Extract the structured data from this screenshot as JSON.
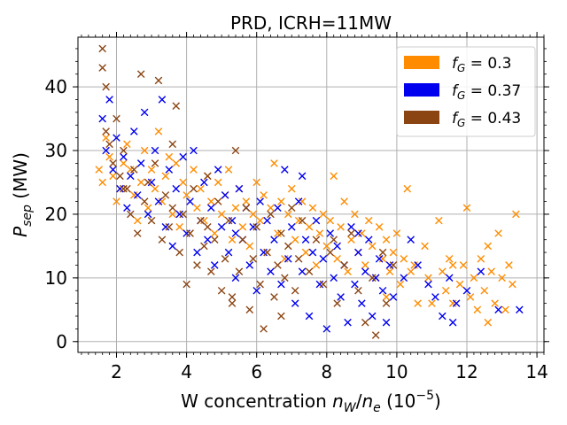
{
  "chart_data": {
    "type": "scatter",
    "title": "PRD, ICRH=11MW",
    "xlabel": {
      "prefix": "W concentration ",
      "var": "n",
      "var_sub1": "W",
      "slash": "/",
      "var2": "n",
      "var_sub2": "e",
      "unit_prefix": " (10",
      "unit_sup": "−5",
      "unit_suffix": ")"
    },
    "ylabel": {
      "var": "P",
      "sub": "sep",
      "unit": " (MW)"
    },
    "xlim": [
      0.9,
      14.2
    ],
    "ylim": [
      -1.7,
      47.8
    ],
    "xticks": [
      2,
      4,
      6,
      8,
      10,
      12,
      14
    ],
    "xtick_labels": [
      "2",
      "4",
      "6",
      "8",
      "10",
      "12",
      "14"
    ],
    "yticks": [
      0,
      10,
      20,
      30,
      40
    ],
    "ytick_labels": [
      "0",
      "10",
      "20",
      "30",
      "40"
    ],
    "grid": true,
    "marker": "x",
    "legend_position": "top-right",
    "series": [
      {
        "name": "f_G = 0.3",
        "legend_var": "f",
        "legend_sub": "G",
        "legend_value": " = 0.3",
        "color": "#ff8c00",
        "points": [
          [
            1.5,
            27
          ],
          [
            1.6,
            25
          ],
          [
            1.7,
            32
          ],
          [
            1.8,
            29
          ],
          [
            1.9,
            26
          ],
          [
            2.0,
            22
          ],
          [
            2.1,
            24
          ],
          [
            2.2,
            28
          ],
          [
            2.3,
            31
          ],
          [
            2.4,
            27
          ],
          [
            2.5,
            23
          ],
          [
            2.6,
            19
          ],
          [
            2.7,
            25
          ],
          [
            2.8,
            30
          ],
          [
            2.9,
            21
          ],
          [
            3.0,
            27
          ],
          [
            3.1,
            24
          ],
          [
            3.2,
            33
          ],
          [
            3.3,
            22
          ],
          [
            3.4,
            26
          ],
          [
            3.5,
            29
          ],
          [
            3.6,
            20
          ],
          [
            3.7,
            28
          ],
          [
            3.8,
            18
          ],
          [
            3.9,
            25
          ],
          [
            4.0,
            23
          ],
          [
            4.1,
            17
          ],
          [
            4.2,
            27
          ],
          [
            4.3,
            21
          ],
          [
            4.4,
            24
          ],
          [
            4.5,
            19
          ],
          [
            4.6,
            26
          ],
          [
            4.7,
            22
          ],
          [
            4.8,
            17
          ],
          [
            4.9,
            25
          ],
          [
            5.0,
            20
          ],
          [
            5.1,
            23
          ],
          [
            5.2,
            27
          ],
          [
            5.3,
            16
          ],
          [
            5.4,
            21
          ],
          [
            5.5,
            24
          ],
          [
            5.6,
            18
          ],
          [
            5.7,
            22
          ],
          [
            5.8,
            15
          ],
          [
            5.9,
            20
          ],
          [
            6.0,
            25
          ],
          [
            6.1,
            19
          ],
          [
            6.2,
            23
          ],
          [
            6.3,
            14
          ],
          [
            6.4,
            21
          ],
          [
            6.5,
            28
          ],
          [
            6.6,
            17
          ],
          [
            6.7,
            22
          ],
          [
            6.8,
            13
          ],
          [
            6.9,
            20
          ],
          [
            7.0,
            24
          ],
          [
            7.1,
            16
          ],
          [
            7.2,
            19
          ],
          [
            7.3,
            22
          ],
          [
            7.4,
            14
          ],
          [
            7.5,
            18
          ],
          [
            7.6,
            21
          ],
          [
            7.7,
            12
          ],
          [
            7.8,
            17
          ],
          [
            7.9,
            20
          ],
          [
            8.0,
            15
          ],
          [
            8.1,
            19
          ],
          [
            8.2,
            26
          ],
          [
            8.3,
            13
          ],
          [
            8.4,
            18
          ],
          [
            8.5,
            22
          ],
          [
            8.6,
            11
          ],
          [
            8.7,
            16
          ],
          [
            8.8,
            20
          ],
          [
            8.9,
            14
          ],
          [
            9.0,
            17
          ],
          [
            9.1,
            12
          ],
          [
            9.2,
            19
          ],
          [
            9.3,
            15
          ],
          [
            9.4,
            10
          ],
          [
            9.5,
            18
          ],
          [
            9.6,
            13
          ],
          [
            9.7,
            16
          ],
          [
            9.8,
            11
          ],
          [
            9.9,
            14
          ],
          [
            10.0,
            17
          ],
          [
            10.1,
            9
          ],
          [
            10.2,
            13
          ],
          [
            10.3,
            24
          ],
          [
            10.5,
            12
          ],
          [
            10.6,
            6
          ],
          [
            10.8,
            15
          ],
          [
            10.9,
            10
          ],
          [
            11.0,
            6
          ],
          [
            11.2,
            19
          ],
          [
            11.3,
            11
          ],
          [
            11.4,
            8
          ],
          [
            11.5,
            13
          ],
          [
            11.6,
            6
          ],
          [
            11.8,
            9
          ],
          [
            11.9,
            12
          ],
          [
            12.0,
            21
          ],
          [
            12.1,
            7
          ],
          [
            12.2,
            10
          ],
          [
            12.3,
            5
          ],
          [
            12.4,
            13
          ],
          [
            12.5,
            8
          ],
          [
            12.6,
            15
          ],
          [
            12.7,
            11
          ],
          [
            12.8,
            6
          ],
          [
            12.9,
            17
          ],
          [
            13.0,
            10
          ],
          [
            13.1,
            5
          ],
          [
            13.2,
            12
          ],
          [
            13.3,
            9
          ],
          [
            13.4,
            20
          ],
          [
            12.6,
            3
          ],
          [
            11.6,
            12
          ],
          [
            10.4,
            11
          ],
          [
            9.7,
            7
          ]
        ]
      },
      {
        "name": "f_G = 0.37",
        "legend_var": "f",
        "legend_sub": "G",
        "legend_value": " = 0.37",
        "color": "#0000ee",
        "points": [
          [
            1.6,
            35
          ],
          [
            1.7,
            30
          ],
          [
            1.8,
            38
          ],
          [
            1.9,
            27
          ],
          [
            2.0,
            32
          ],
          [
            2.1,
            24
          ],
          [
            2.2,
            29
          ],
          [
            2.3,
            21
          ],
          [
            2.4,
            26
          ],
          [
            2.5,
            33
          ],
          [
            2.6,
            23
          ],
          [
            2.7,
            28
          ],
          [
            2.8,
            36
          ],
          [
            2.9,
            20
          ],
          [
            3.0,
            25
          ],
          [
            3.1,
            30
          ],
          [
            3.2,
            22
          ],
          [
            3.3,
            38
          ],
          [
            3.4,
            18
          ],
          [
            3.5,
            27
          ],
          [
            3.6,
            15
          ],
          [
            3.7,
            24
          ],
          [
            3.8,
            20
          ],
          [
            3.9,
            29
          ],
          [
            4.0,
            17
          ],
          [
            4.1,
            22
          ],
          [
            4.2,
            30
          ],
          [
            4.3,
            14
          ],
          [
            4.4,
            19
          ],
          [
            4.5,
            25
          ],
          [
            4.6,
            16
          ],
          [
            4.7,
            21
          ],
          [
            4.8,
            12
          ],
          [
            4.9,
            27
          ],
          [
            5.0,
            18
          ],
          [
            5.1,
            23
          ],
          [
            5.2,
            14
          ],
          [
            5.3,
            19
          ],
          [
            5.4,
            10
          ],
          [
            5.5,
            24
          ],
          [
            5.6,
            16
          ],
          [
            5.7,
            21
          ],
          [
            5.8,
            12
          ],
          [
            5.9,
            18
          ],
          [
            6.0,
            8
          ],
          [
            6.1,
            22
          ],
          [
            6.2,
            14
          ],
          [
            6.3,
            19
          ],
          [
            6.4,
            11
          ],
          [
            6.5,
            16
          ],
          [
            6.6,
            21
          ],
          [
            6.7,
            9
          ],
          [
            6.8,
            27
          ],
          [
            6.9,
            13
          ],
          [
            7.0,
            18
          ],
          [
            7.1,
            6
          ],
          [
            7.2,
            22
          ],
          [
            7.3,
            11
          ],
          [
            7.4,
            16
          ],
          [
            7.5,
            4
          ],
          [
            7.6,
            14
          ],
          [
            7.7,
            19
          ],
          [
            7.8,
            9
          ],
          [
            7.9,
            13
          ],
          [
            8.0,
            2
          ],
          [
            8.1,
            17
          ],
          [
            8.2,
            10
          ],
          [
            8.3,
            15
          ],
          [
            8.4,
            7
          ],
          [
            8.5,
            12
          ],
          [
            8.6,
            3
          ],
          [
            8.7,
            18
          ],
          [
            8.8,
            9
          ],
          [
            8.9,
            14
          ],
          [
            9.0,
            6
          ],
          [
            9.1,
            11
          ],
          [
            9.2,
            16
          ],
          [
            9.3,
            4
          ],
          [
            9.4,
            10
          ],
          [
            9.5,
            13
          ],
          [
            9.6,
            8
          ],
          [
            9.7,
            3
          ],
          [
            9.8,
            12
          ],
          [
            9.9,
            7
          ],
          [
            10.2,
            10
          ],
          [
            10.4,
            16
          ],
          [
            10.6,
            12
          ],
          [
            10.9,
            9
          ],
          [
            11.1,
            7
          ],
          [
            11.3,
            4
          ],
          [
            11.5,
            10
          ],
          [
            11.7,
            6
          ],
          [
            12.0,
            8
          ],
          [
            12.4,
            11
          ],
          [
            12.9,
            5
          ],
          [
            13.5,
            5
          ],
          [
            11.6,
            3
          ],
          [
            8.9,
            17
          ],
          [
            7.3,
            26
          ],
          [
            5.4,
            17
          ]
        ]
      },
      {
        "name": "f_G = 0.43",
        "legend_var": "f",
        "legend_sub": "G",
        "legend_value": " = 0.43",
        "color": "#8b4513",
        "points": [
          [
            1.6,
            46
          ],
          [
            1.6,
            43
          ],
          [
            1.7,
            40
          ],
          [
            1.7,
            33
          ],
          [
            1.8,
            31
          ],
          [
            1.9,
            28
          ],
          [
            2.0,
            35
          ],
          [
            2.1,
            26
          ],
          [
            2.2,
            30
          ],
          [
            2.3,
            24
          ],
          [
            2.4,
            20
          ],
          [
            2.5,
            27
          ],
          [
            2.6,
            17
          ],
          [
            2.7,
            42
          ],
          [
            2.8,
            22
          ],
          [
            2.9,
            25
          ],
          [
            3.0,
            19
          ],
          [
            3.1,
            28
          ],
          [
            3.2,
            41
          ],
          [
            3.3,
            16
          ],
          [
            3.4,
            23
          ],
          [
            3.5,
            18
          ],
          [
            3.6,
            21
          ],
          [
            3.7,
            37
          ],
          [
            3.8,
            14
          ],
          [
            3.9,
            20
          ],
          [
            4.0,
            9
          ],
          [
            4.1,
            17
          ],
          [
            4.2,
            24
          ],
          [
            4.3,
            12
          ],
          [
            4.4,
            19
          ],
          [
            4.5,
            15
          ],
          [
            4.6,
            26
          ],
          [
            4.7,
            11
          ],
          [
            4.8,
            16
          ],
          [
            4.9,
            22
          ],
          [
            5.0,
            8
          ],
          [
            5.1,
            13
          ],
          [
            5.2,
            19
          ],
          [
            5.3,
            6
          ],
          [
            5.4,
            30
          ],
          [
            5.5,
            11
          ],
          [
            5.6,
            16
          ],
          [
            5.7,
            21
          ],
          [
            5.8,
            5
          ],
          [
            5.9,
            13
          ],
          [
            6.0,
            18
          ],
          [
            6.1,
            9
          ],
          [
            6.2,
            2
          ],
          [
            6.3,
            14
          ],
          [
            6.4,
            20
          ],
          [
            6.5,
            7
          ],
          [
            6.6,
            12
          ],
          [
            6.7,
            17
          ],
          [
            6.8,
            10
          ],
          [
            6.9,
            15
          ],
          [
            7.0,
            21
          ],
          [
            7.1,
            8
          ],
          [
            7.2,
            13
          ],
          [
            7.3,
            19
          ],
          [
            7.5,
            11
          ],
          [
            7.7,
            16
          ],
          [
            7.9,
            9
          ],
          [
            8.1,
            14
          ],
          [
            8.3,
            6
          ],
          [
            8.5,
            12
          ],
          [
            8.7,
            17
          ],
          [
            8.9,
            8
          ],
          [
            9.1,
            3
          ],
          [
            9.3,
            10
          ],
          [
            9.4,
            1
          ],
          [
            9.6,
            14
          ],
          [
            9.7,
            6
          ],
          [
            9.9,
            12
          ],
          [
            6.7,
            4
          ],
          [
            5.3,
            7
          ],
          [
            3.6,
            31
          ],
          [
            2.2,
            24
          ],
          [
            4.6,
            18
          ],
          [
            8.2,
            16
          ]
        ]
      }
    ]
  }
}
